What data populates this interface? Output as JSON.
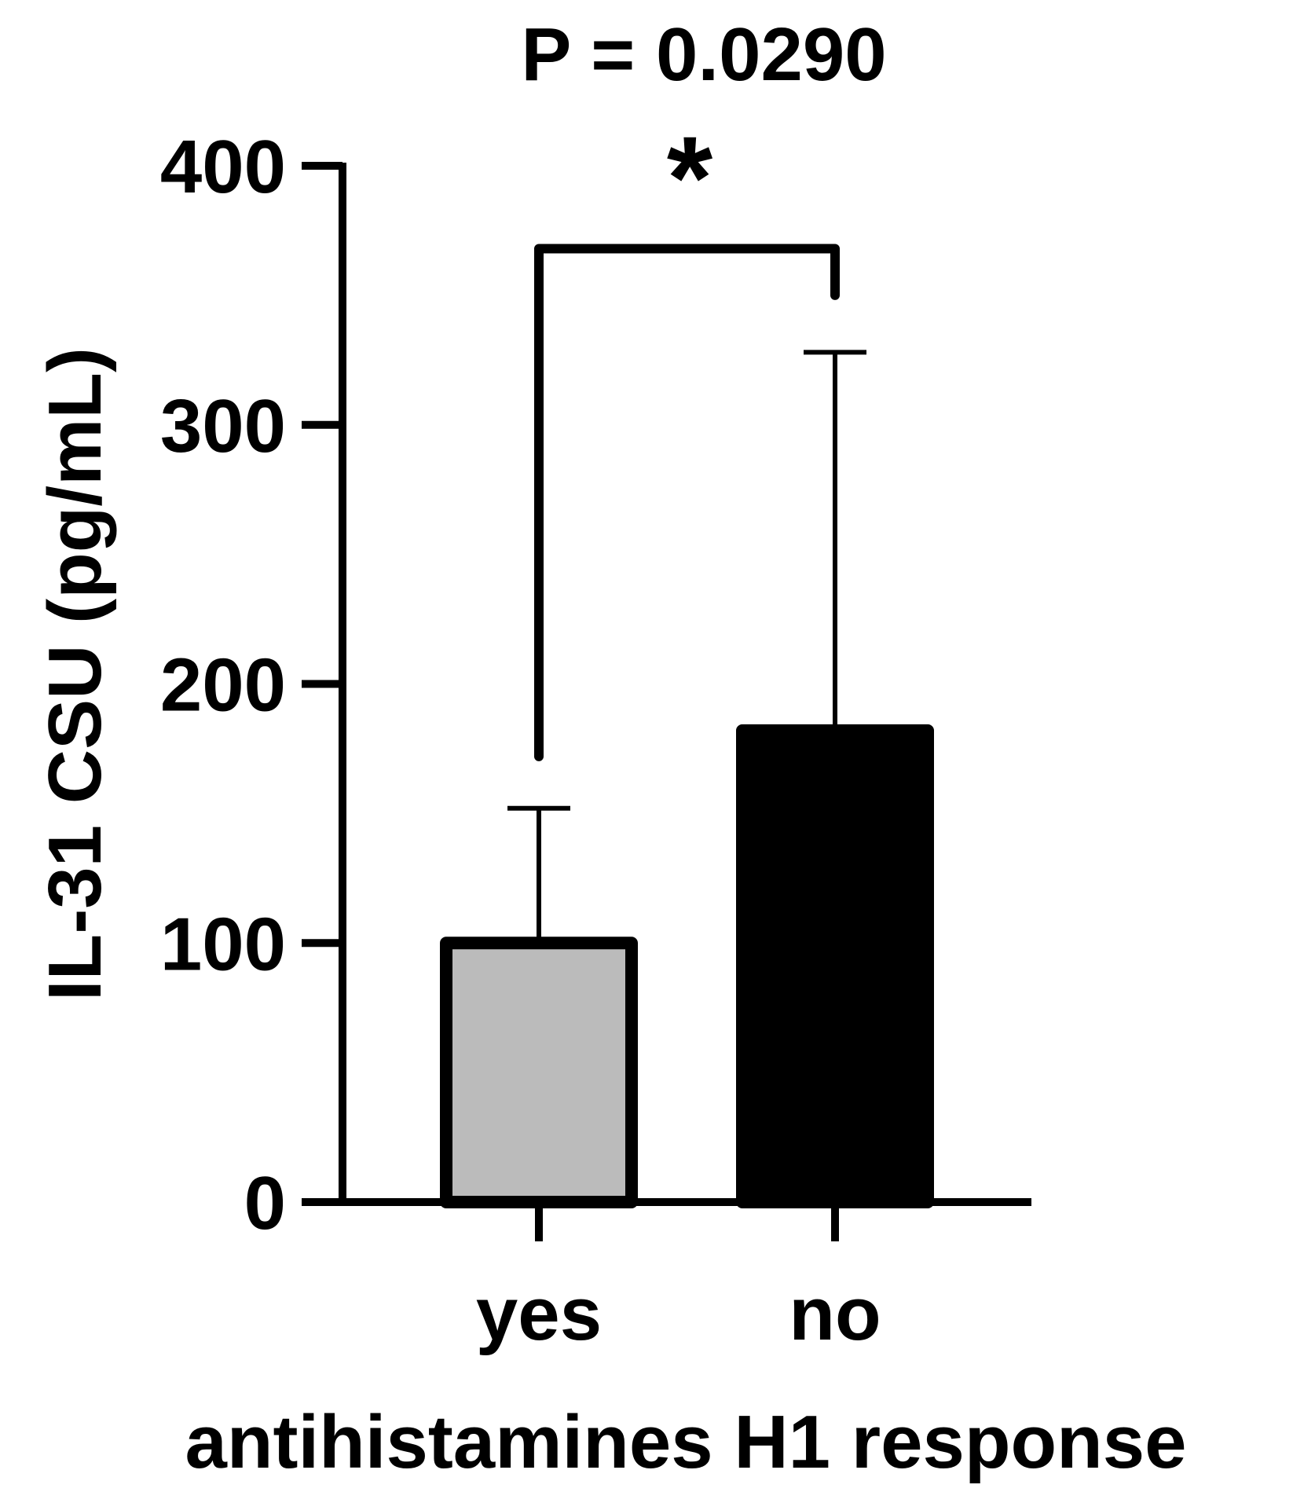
{
  "chart_data": {
    "type": "bar",
    "title": "P = 0.0290",
    "significance_marker": "*",
    "xlabel": "antihistamines H1 response",
    "ylabel": "IL-31 CSU  (pg/mL)",
    "categories": [
      "yes",
      "no"
    ],
    "values": [
      100,
      182
    ],
    "error_upper": [
      152,
      328
    ],
    "bar_colors": [
      "#bbbbbb",
      "#000000"
    ],
    "ylim": [
      0,
      400
    ],
    "yticks": [
      0,
      100,
      200,
      300,
      400
    ],
    "bracket": {
      "from": 0,
      "to": 1,
      "left_end": 172,
      "right_end": 350,
      "top": 368
    },
    "grid": false,
    "legend": "none"
  }
}
